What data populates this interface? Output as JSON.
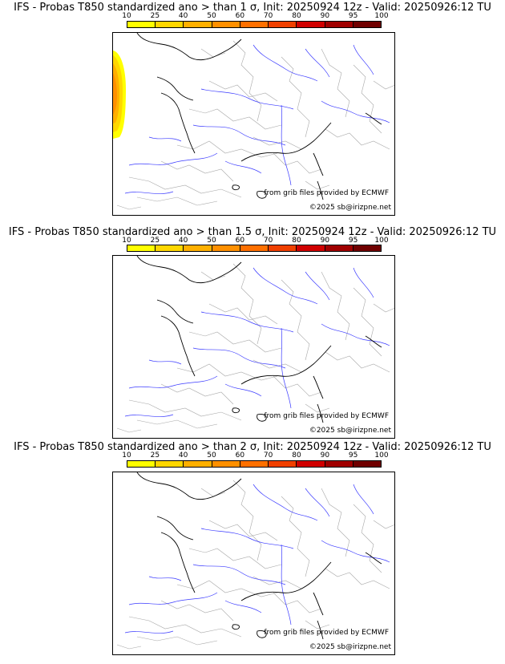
{
  "colorbar": {
    "ticks": [
      "10",
      "25",
      "40",
      "50",
      "60",
      "70",
      "80",
      "90",
      "95",
      "100"
    ],
    "colors": [
      "#ffff00",
      "#ffd700",
      "#ffb000",
      "#ff9000",
      "#ff7000",
      "#f04000",
      "#d00000",
      "#a00000",
      "#700000"
    ]
  },
  "panels": [
    {
      "title": "IFS - Probas T850  standardized ano > than 1 σ, Init: 20250924 12z - Valid: 20250926:12 TU",
      "credit": "from grib files provided by ECMWF",
      "copyright": "©2025 sb@irizpne.net",
      "has_anomaly_patch": true
    },
    {
      "title": "IFS - Probas T850  standardized ano > than 1.5 σ, Init: 20250924 12z - Valid: 20250926:12 TU",
      "credit": "from grib files provided by ECMWF",
      "copyright": "©2025 sb@irizpne.net",
      "has_anomaly_patch": false
    },
    {
      "title": "IFS - Probas T850  standardized ano > than 2 σ, Init: 20250924 12z - Valid: 20250926:12 TU",
      "credit": "from grib files provided by ECMWF",
      "copyright": "©2025 sb@irizpne.net",
      "has_anomaly_patch": false
    }
  ]
}
